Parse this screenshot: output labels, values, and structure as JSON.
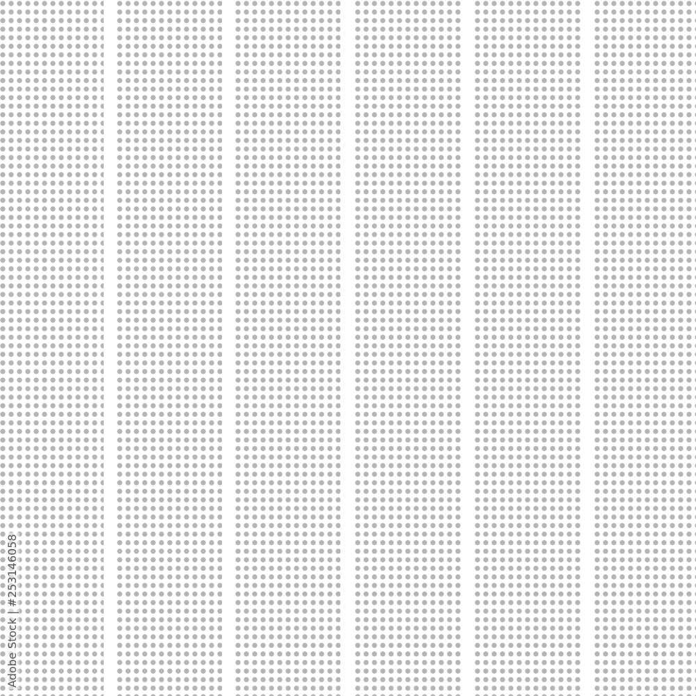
{
  "pattern": {
    "dot_color": "#b5b5b7",
    "background_color": "#ffffff",
    "stripe_count": 6
  },
  "watermark": {
    "text": "Adobe Stock | #253146058"
  }
}
